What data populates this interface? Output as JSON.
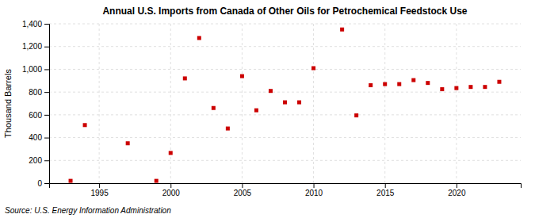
{
  "chart_data": {
    "type": "scatter",
    "title": "Annual U.S. Imports from Canada of Other Oils for Petrochemical Feedstock Use",
    "ylabel": "Thousand Barrels",
    "annotations": [
      "Source: U.S. Energy Information Administration"
    ],
    "x": [
      1993,
      1994,
      1997,
      1999,
      2000,
      2001,
      2002,
      2003,
      2004,
      2005,
      2006,
      2007,
      2008,
      2009,
      2010,
      2012,
      2013,
      2014,
      2015,
      2016,
      2017,
      2018,
      2019,
      2020,
      2021,
      2022,
      2023
    ],
    "values": [
      20,
      510,
      350,
      20,
      265,
      920,
      1275,
      660,
      480,
      940,
      640,
      810,
      710,
      710,
      1010,
      1350,
      595,
      860,
      870,
      870,
      905,
      880,
      825,
      835,
      845,
      845,
      890
    ],
    "color": "#cc0000",
    "marker": "square",
    "xlim": [
      1991.5,
      2024.5
    ],
    "xticks": [
      1995,
      2000,
      2005,
      2010,
      2015,
      2020
    ],
    "ylim": [
      0,
      1400
    ],
    "yticks": [
      0,
      200,
      400,
      600,
      800,
      {
        "value": 1000,
        "label": "1,000"
      },
      {
        "value": 1200,
        "label": "1,200"
      },
      {
        "value": 1400,
        "label": "1,400"
      }
    ],
    "grid": true
  }
}
